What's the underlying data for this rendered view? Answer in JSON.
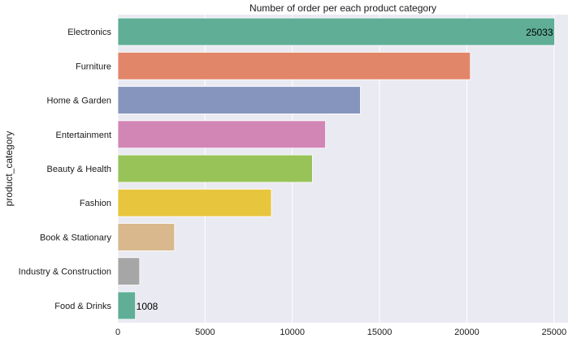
{
  "chart_data": {
    "type": "bar",
    "orientation": "horizontal",
    "title": "Number of order per each product category",
    "xlabel": "",
    "ylabel": "product_category",
    "categories": [
      "Electronics",
      "Furniture",
      "Home & Garden",
      "Entertainment",
      "Beauty & Health",
      "Fashion",
      "Book & Stationary",
      "Industry & Construction",
      "Food & Drinks"
    ],
    "values": [
      25033,
      20200,
      13900,
      11900,
      11150,
      8800,
      3250,
      1250,
      1008
    ],
    "data_labels": [
      {
        "category": "Electronics",
        "text": "25033"
      },
      {
        "category": "Food & Drinks",
        "text": "1008"
      }
    ],
    "xlim": [
      0,
      25800
    ],
    "xticks": [
      0,
      5000,
      10000,
      15000,
      20000,
      25000
    ],
    "grid": "vertical",
    "colors": [
      "#5fae95",
      "#e2866a",
      "#8595bd",
      "#d286b6",
      "#98c359",
      "#e7c53d",
      "#d8b88c",
      "#a6a6a6",
      "#5fae95"
    ],
    "plot_background": "#eaeaf2"
  }
}
